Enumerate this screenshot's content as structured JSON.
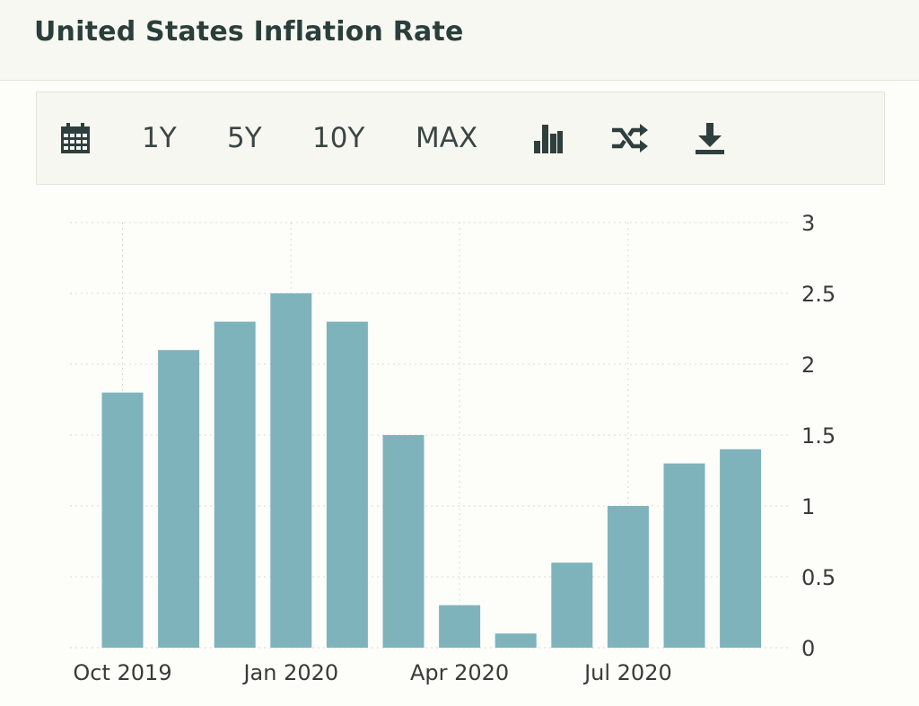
{
  "header": {
    "title": "United States Inflation Rate"
  },
  "toolbar": {
    "items": [
      {
        "id": "calendar",
        "icon": "calendar-icon"
      },
      {
        "id": "1y",
        "label": "1Y"
      },
      {
        "id": "5y",
        "label": "5Y"
      },
      {
        "id": "10y",
        "label": "10Y"
      },
      {
        "id": "max",
        "label": "MAX"
      },
      {
        "id": "bar",
        "icon": "bar-chart-icon"
      },
      {
        "id": "shuffle",
        "icon": "shuffle-icon"
      },
      {
        "id": "download",
        "icon": "download-icon"
      }
    ]
  },
  "colors": {
    "bar": "#7fb3bc",
    "grid": "#d9d9d9",
    "text": "#3a3a3a"
  },
  "chart_data": {
    "type": "bar",
    "categories": [
      "Oct 2019",
      "Nov 2019",
      "Dec 2019",
      "Jan 2020",
      "Feb 2020",
      "Mar 2020",
      "Apr 2020",
      "May 2020",
      "Jun 2020",
      "Jul 2020",
      "Aug 2020",
      "Sep 2020"
    ],
    "values": [
      1.8,
      2.1,
      2.3,
      2.5,
      2.3,
      1.5,
      0.3,
      0.1,
      0.6,
      1.0,
      1.3,
      1.4
    ],
    "x_tick_labels": [
      "Oct 2019",
      "Jan 2020",
      "Apr 2020",
      "Jul 2020"
    ],
    "y_ticks": [
      "0",
      "0.5",
      "1",
      "1.5",
      "2",
      "2.5",
      "3"
    ],
    "title": "",
    "xlabel": "",
    "ylabel": "",
    "ylim": [
      0,
      3
    ],
    "y_axis_position": "right",
    "grid": true
  }
}
